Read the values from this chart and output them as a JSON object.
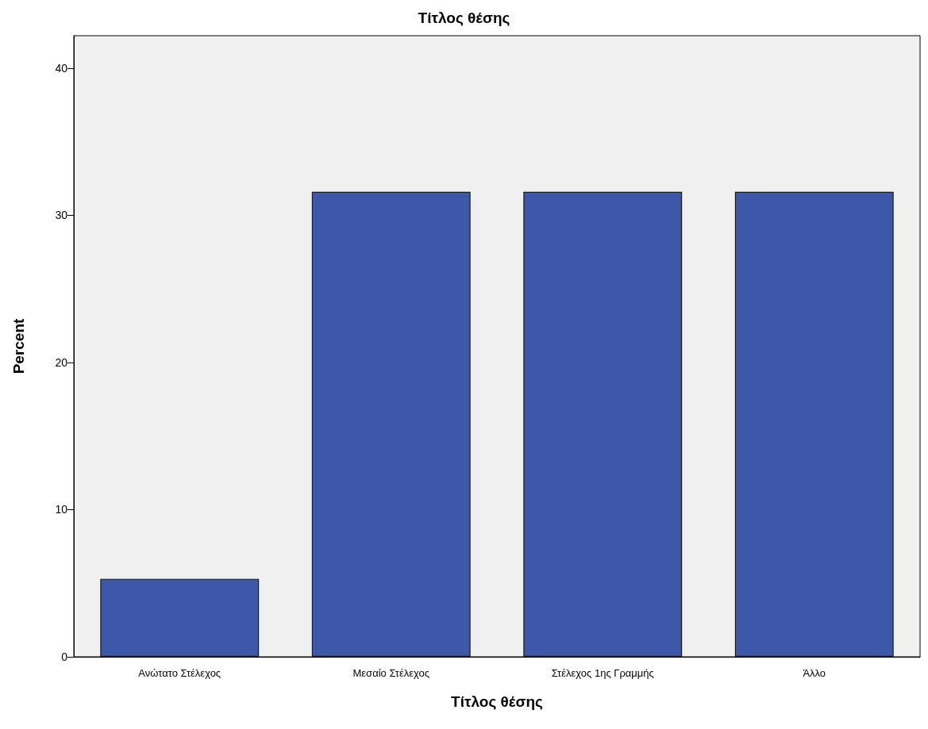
{
  "chart_data": {
    "type": "bar",
    "title": "Τίτλος θέσης",
    "xlabel": "Τίτλος θέσης",
    "ylabel": "Percent",
    "categories": [
      "Ανώτατο Στέλεχος",
      "Μεσαίο Στέλεχος",
      "Στέλεχος 1ης Γραμμής",
      "Άλλο"
    ],
    "values": [
      5.3,
      31.6,
      31.6,
      31.6
    ],
    "color": "#3d58a9",
    "ylim": [
      0,
      42.2
    ],
    "yticks": [
      0,
      10,
      20,
      30,
      40
    ],
    "grid": false
  }
}
